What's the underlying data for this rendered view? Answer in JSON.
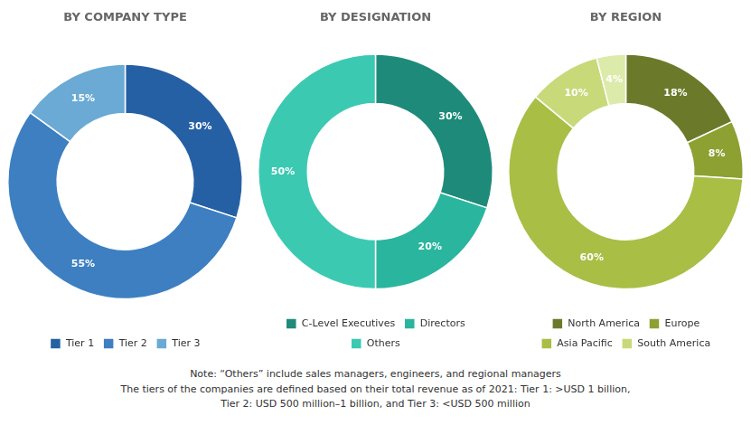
{
  "chart_data": [
    {
      "type": "doughnut",
      "title": "BY COMPANY TYPE",
      "categories": [
        "Tier 1",
        "Tier 2",
        "Tier 3"
      ],
      "values": [
        30,
        55,
        15
      ],
      "value_labels": [
        "30%",
        "55%",
        "15%"
      ],
      "colors": [
        "#2660a4",
        "#3d7fc1",
        "#6aaad4"
      ],
      "data_labels": true,
      "legend": "bottom"
    },
    {
      "type": "doughnut",
      "title": "BY DESIGNATION",
      "categories": [
        "C-Level Executives",
        "Directors",
        "Others"
      ],
      "values": [
        30,
        20,
        50
      ],
      "value_labels": [
        "30%",
        "20%",
        "50%"
      ],
      "colors": [
        "#1e8a7a",
        "#2ab59e",
        "#3cc9b2"
      ],
      "data_labels": true,
      "legend": "bottom"
    },
    {
      "type": "doughnut",
      "title": "BY REGION",
      "categories": [
        "North America",
        "Europe",
        "Asia Pacific",
        "South America",
        null
      ],
      "values": [
        18,
        8,
        60,
        10,
        4
      ],
      "value_labels": [
        "18%",
        "8%",
        "60%",
        "10%",
        "4%"
      ],
      "colors": [
        "#6b7a2a",
        "#8da032",
        "#a8be45",
        "#c8d97a",
        "#dceaaa"
      ],
      "data_labels": true,
      "legend": "bottom"
    }
  ],
  "annotations": [
    "Note: “Others” include sales managers, engineers, and regional managers",
    "The tiers of the companies are defined based on their total revenue as of 2021: Tier 1: >USD 1 billion,",
    "Tier 2: USD 500 million–1 billion, and Tier 3: <USD 500 million"
  ]
}
